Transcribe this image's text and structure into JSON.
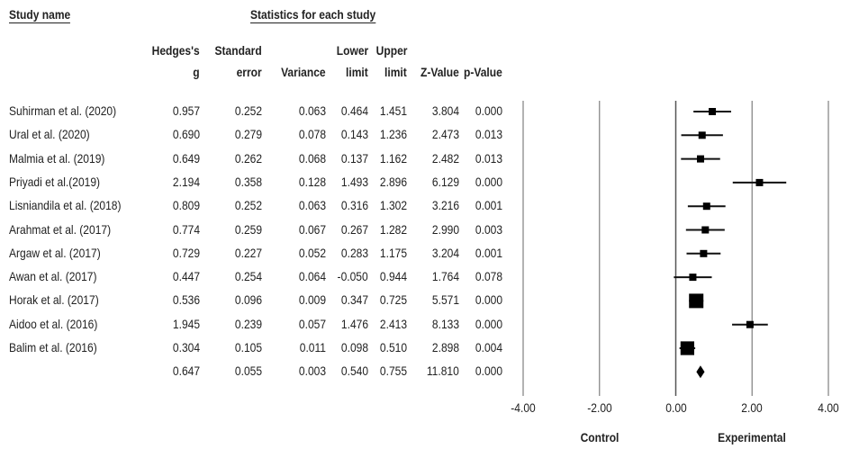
{
  "headers": {
    "study_name": "Study name",
    "statistics": "Statistics for each study",
    "columns": [
      [
        "Hedges's",
        "g"
      ],
      [
        "Standard",
        "error"
      ],
      [
        "",
        "Variance"
      ],
      [
        "Lower",
        "limit"
      ],
      [
        "Upper",
        "limit"
      ],
      [
        "",
        "Z-Value"
      ],
      [
        "",
        "p-Value"
      ]
    ]
  },
  "side_labels": {
    "left": "Control",
    "right": "Experimental"
  },
  "chart_data": {
    "type": "forest",
    "x_ticks": [
      "-4.00",
      "-2.00",
      "0.00",
      "2.00",
      "4.00"
    ],
    "xlim": [
      -4,
      4
    ],
    "studies": [
      {
        "name": "Suhirman et al. (2020)",
        "g": "0.957",
        "se": "0.252",
        "var": "0.063",
        "lower": "0.464",
        "upper": "1.451",
        "z": "3.804",
        "p": "0.000"
      },
      {
        "name": "Ural et al. (2020)",
        "g": "0.690",
        "se": "0.279",
        "var": "0.078",
        "lower": "0.143",
        "upper": "1.236",
        "z": "2.473",
        "p": "0.013"
      },
      {
        "name": "Malmia et al. (2019)",
        "g": "0.649",
        "se": "0.262",
        "var": "0.068",
        "lower": "0.137",
        "upper": "1.162",
        "z": "2.482",
        "p": "0.013"
      },
      {
        "name": "Priyadi et al.(2019)",
        "g": "2.194",
        "se": "0.358",
        "var": "0.128",
        "lower": "1.493",
        "upper": "2.896",
        "z": "6.129",
        "p": "0.000"
      },
      {
        "name": "Lisniandila et al. (2018)",
        "g": "0.809",
        "se": "0.252",
        "var": "0.063",
        "lower": "0.316",
        "upper": "1.302",
        "z": "3.216",
        "p": "0.001"
      },
      {
        "name": "Arahmat et al. (2017)",
        "g": "0.774",
        "se": "0.259",
        "var": "0.067",
        "lower": "0.267",
        "upper": "1.282",
        "z": "2.990",
        "p": "0.003"
      },
      {
        "name": "Argaw et al. (2017)",
        "g": "0.729",
        "se": "0.227",
        "var": "0.052",
        "lower": "0.283",
        "upper": "1.175",
        "z": "3.204",
        "p": "0.001"
      },
      {
        "name": "Awan et al. (2017)",
        "g": "0.447",
        "se": "0.254",
        "var": "0.064",
        "lower": "-0.050",
        "upper": "0.944",
        "z": "1.764",
        "p": "0.078"
      },
      {
        "name": "Horak et al. (2017)",
        "g": "0.536",
        "se": "0.096",
        "var": "0.009",
        "lower": "0.347",
        "upper": "0.725",
        "z": "5.571",
        "p": "0.000"
      },
      {
        "name": "Aidoo et al. (2016)",
        "g": "1.945",
        "se": "0.239",
        "var": "0.057",
        "lower": "1.476",
        "upper": "2.413",
        "z": "8.133",
        "p": "0.000"
      },
      {
        "name": "Balim et al. (2016)",
        "g": "0.304",
        "se": "0.105",
        "var": "0.011",
        "lower": "0.098",
        "upper": "0.510",
        "z": "2.898",
        "p": "0.004"
      }
    ],
    "summary": {
      "name": "",
      "g": "0.647",
      "se": "0.055",
      "var": "0.003",
      "lower": "0.540",
      "upper": "0.755",
      "z": "11.810",
      "p": "0.000"
    }
  }
}
